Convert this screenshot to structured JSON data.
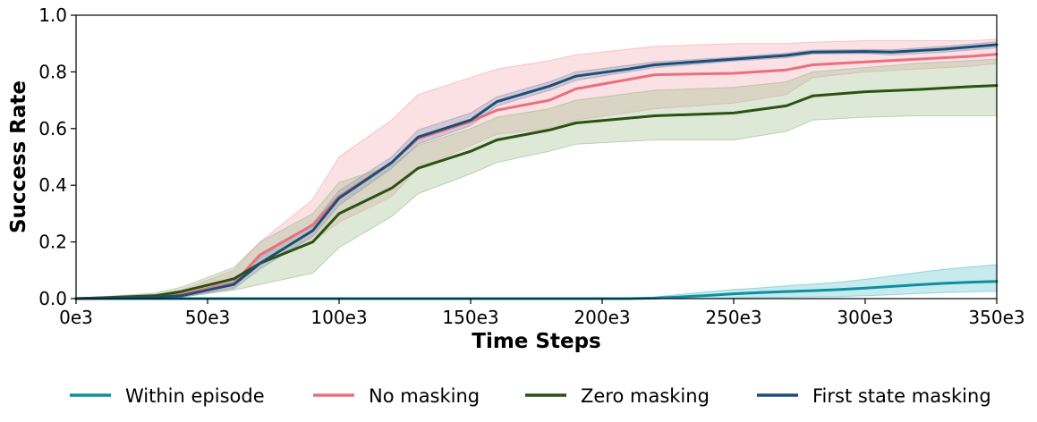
{
  "chart_data": {
    "type": "line",
    "xlabel": "Time Steps",
    "ylabel": "Success Rate",
    "xlim": [
      0,
      350000
    ],
    "ylim": [
      0,
      1.0
    ],
    "x_ticks": [
      0,
      50000,
      100000,
      150000,
      200000,
      250000,
      300000,
      350000
    ],
    "x_tick_labels": [
      "0e3",
      "50e3",
      "100e3",
      "150e3",
      "200e3",
      "250e3",
      "300e3",
      "350e3"
    ],
    "y_ticks": [
      0.0,
      0.2,
      0.4,
      0.6,
      0.8,
      1.0
    ],
    "y_tick_labels": [
      "0.0",
      "0.2",
      "0.4",
      "0.6",
      "0.8",
      "1.0"
    ],
    "grid": false,
    "legend_position": "bottom",
    "series": [
      {
        "name": "Within episode",
        "color": "#0e8fa0",
        "band_color": "#5cc3cc",
        "x": [
          0,
          10000,
          20000,
          30000,
          40000,
          50000,
          60000,
          70000,
          80000,
          90000,
          100000,
          110000,
          120000,
          130000,
          140000,
          150000,
          160000,
          170000,
          180000,
          190000,
          200000,
          210000,
          220000,
          230000,
          240000,
          250000,
          260000,
          270000,
          280000,
          290000,
          300000,
          310000,
          320000,
          330000,
          340000,
          350000
        ],
        "values": [
          0,
          0,
          0,
          0,
          0,
          0,
          0,
          0,
          0,
          0,
          0,
          0,
          0,
          0,
          0,
          0,
          0,
          0,
          0,
          0,
          0,
          0,
          0.002,
          0.006,
          0.011,
          0.017,
          0.021,
          0.025,
          0.028,
          0.032,
          0.037,
          0.043,
          0.049,
          0.054,
          0.058,
          0.061
        ],
        "lower": [
          0,
          0,
          0,
          0,
          0,
          0,
          0,
          0,
          0,
          0,
          0,
          0,
          0,
          0,
          0,
          0,
          0,
          0,
          0,
          0,
          0,
          0,
          0,
          0,
          0,
          0.002,
          0.004,
          0.005,
          0.006,
          0.007,
          0.01,
          0.014,
          0.018,
          0.021,
          0.024,
          0.026
        ],
        "upper": [
          0,
          0,
          0,
          0,
          0,
          0,
          0,
          0,
          0,
          0,
          0,
          0,
          0,
          0,
          0,
          0,
          0,
          0,
          0,
          0,
          0,
          0,
          0.006,
          0.015,
          0.024,
          0.032,
          0.038,
          0.045,
          0.051,
          0.058,
          0.068,
          0.08,
          0.092,
          0.103,
          0.112,
          0.12
        ]
      },
      {
        "name": "No masking",
        "color": "#e8707f",
        "band_color": "#f4a6b3",
        "x": [
          0,
          30000,
          40000,
          60000,
          70000,
          90000,
          100000,
          120000,
          130000,
          150000,
          160000,
          180000,
          190000,
          220000,
          250000,
          270000,
          280000,
          300000,
          320000,
          340000,
          350000
        ],
        "values": [
          0,
          0.008,
          0.015,
          0.055,
          0.155,
          0.26,
          0.36,
          0.48,
          0.565,
          0.625,
          0.665,
          0.7,
          0.74,
          0.79,
          0.795,
          0.807,
          0.825,
          0.835,
          0.845,
          0.855,
          0.862
        ],
        "lower": [
          0,
          0.003,
          0.006,
          0.04,
          0.12,
          0.2,
          0.27,
          0.36,
          0.46,
          0.54,
          0.58,
          0.6,
          0.63,
          0.67,
          0.69,
          0.72,
          0.78,
          0.8,
          0.81,
          0.82,
          0.83
        ],
        "upper": [
          0,
          0.015,
          0.03,
          0.1,
          0.2,
          0.35,
          0.5,
          0.63,
          0.72,
          0.78,
          0.81,
          0.84,
          0.86,
          0.89,
          0.9,
          0.9,
          0.905,
          0.91,
          0.91,
          0.91,
          0.915
        ]
      },
      {
        "name": "Zero masking",
        "color": "#2a5210",
        "band_color": "#9fbd8c",
        "x": [
          0,
          30000,
          40000,
          60000,
          70000,
          90000,
          100000,
          120000,
          130000,
          150000,
          160000,
          180000,
          190000,
          220000,
          250000,
          270000,
          280000,
          300000,
          320000,
          340000,
          350000
        ],
        "values": [
          0,
          0.01,
          0.025,
          0.07,
          0.125,
          0.2,
          0.3,
          0.39,
          0.46,
          0.52,
          0.56,
          0.595,
          0.62,
          0.645,
          0.655,
          0.68,
          0.715,
          0.73,
          0.738,
          0.748,
          0.752
        ],
        "lower": [
          0,
          0.002,
          0.005,
          0.03,
          0.05,
          0.09,
          0.18,
          0.29,
          0.37,
          0.44,
          0.48,
          0.52,
          0.545,
          0.56,
          0.56,
          0.59,
          0.63,
          0.64,
          0.645,
          0.645,
          0.645
        ],
        "upper": [
          0,
          0.02,
          0.04,
          0.11,
          0.2,
          0.3,
          0.41,
          0.47,
          0.54,
          0.6,
          0.64,
          0.67,
          0.7,
          0.735,
          0.745,
          0.765,
          0.8,
          0.815,
          0.83,
          0.84,
          0.845
        ]
      },
      {
        "name": "First state masking",
        "color": "#1e4e75",
        "band_color": "#8a9ab8",
        "x": [
          0,
          30000,
          40000,
          60000,
          70000,
          90000,
          100000,
          120000,
          130000,
          150000,
          160000,
          180000,
          190000,
          210000,
          220000,
          250000,
          270000,
          280000,
          300000,
          310000,
          330000,
          350000
        ],
        "values": [
          0,
          0.005,
          0.01,
          0.05,
          0.125,
          0.24,
          0.355,
          0.48,
          0.57,
          0.63,
          0.695,
          0.75,
          0.785,
          0.81,
          0.825,
          0.845,
          0.858,
          0.87,
          0.872,
          0.87,
          0.88,
          0.896
        ],
        "lower": [
          0,
          0.002,
          0.005,
          0.035,
          0.105,
          0.22,
          0.33,
          0.46,
          0.545,
          0.61,
          0.68,
          0.735,
          0.77,
          0.8,
          0.815,
          0.838,
          0.85,
          0.863,
          0.865,
          0.86,
          0.87,
          0.885
        ],
        "upper": [
          0,
          0.008,
          0.016,
          0.065,
          0.145,
          0.265,
          0.38,
          0.5,
          0.595,
          0.655,
          0.712,
          0.765,
          0.8,
          0.823,
          0.835,
          0.852,
          0.866,
          0.877,
          0.879,
          0.878,
          0.89,
          0.906
        ]
      }
    ]
  }
}
